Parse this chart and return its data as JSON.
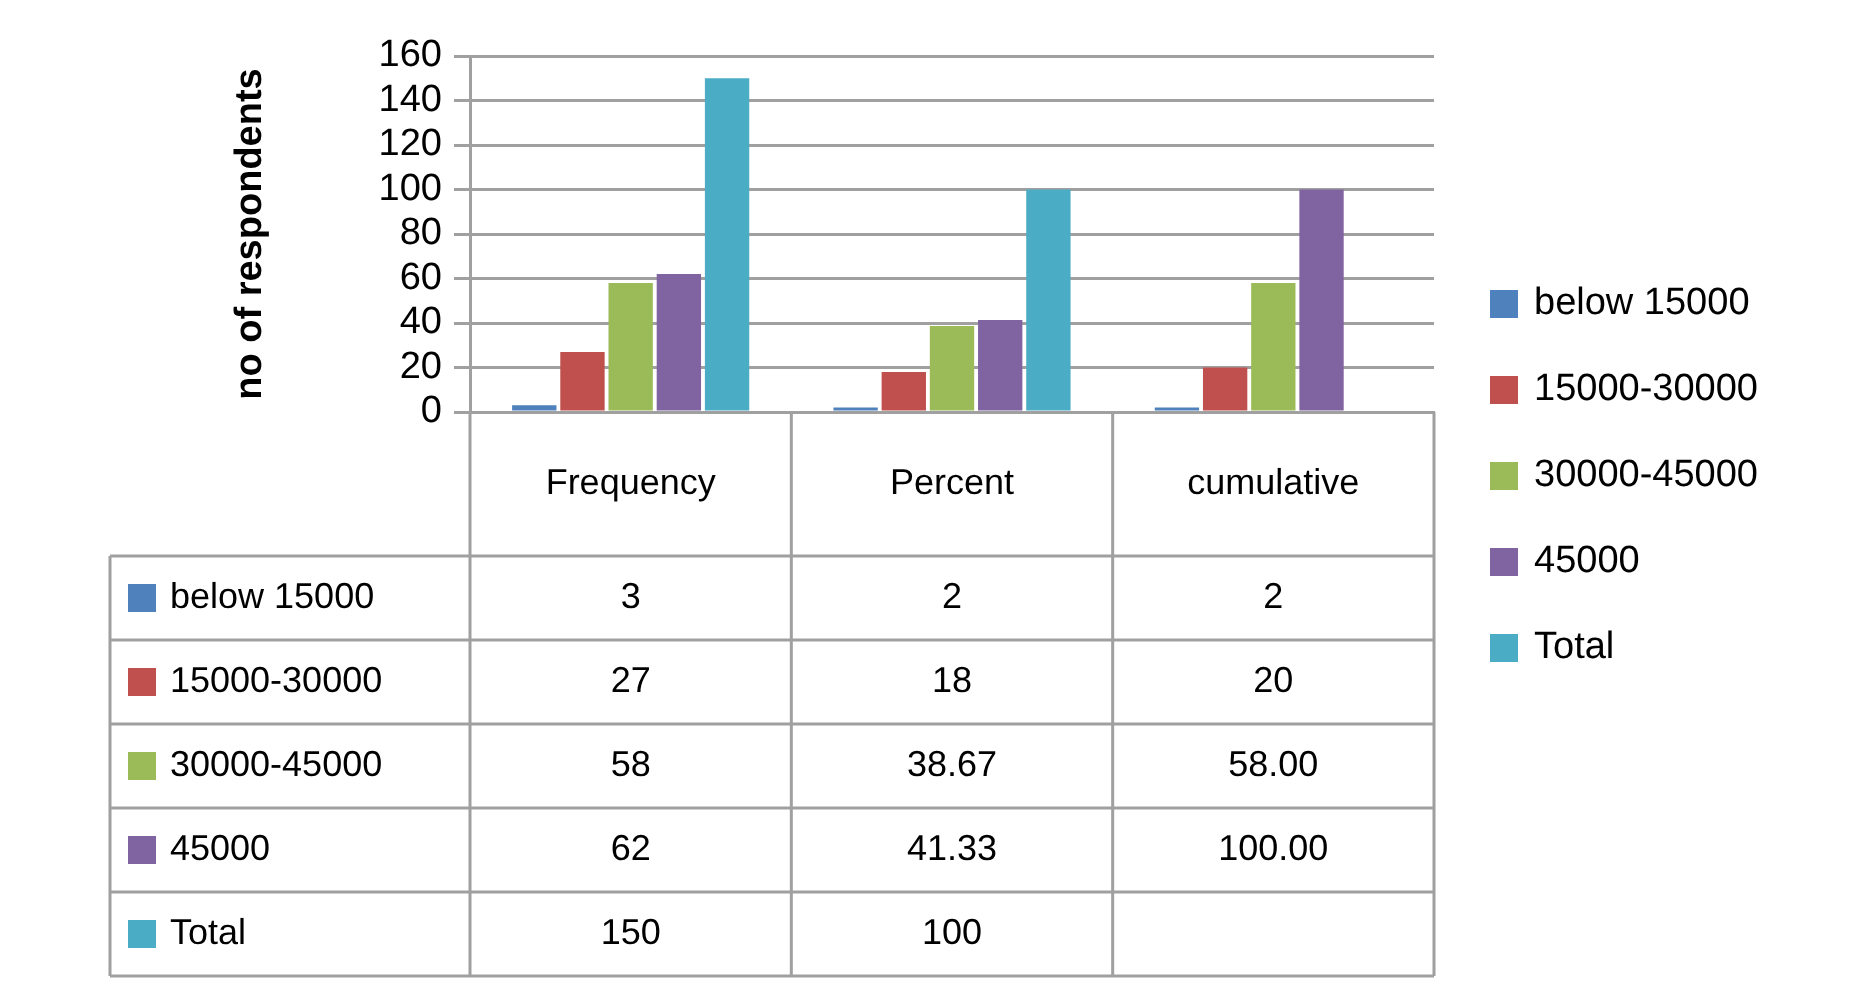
{
  "chart_data": {
    "type": "bar",
    "ylabel": "no of respondents",
    "categories": [
      "Frequency",
      "Percent",
      "cumulative"
    ],
    "series": [
      {
        "name": "below 15000",
        "color": "#4f81bd",
        "values": [
          3,
          2,
          2
        ],
        "value_labels": [
          "3",
          "2",
          "2"
        ]
      },
      {
        "name": "15000-30000",
        "color": "#c0504d",
        "values": [
          27,
          18,
          20
        ],
        "value_labels": [
          "27",
          "18",
          "20"
        ]
      },
      {
        "name": "30000-45000",
        "color": "#9bbb59",
        "values": [
          58,
          38.67,
          58
        ],
        "value_labels": [
          "58",
          "38.67",
          "58.00"
        ]
      },
      {
        "name": "45000",
        "color": "#8064a2",
        "values": [
          62,
          41.33,
          100
        ],
        "value_labels": [
          "62",
          "41.33",
          "100.00"
        ]
      },
      {
        "name": "Total",
        "color": "#4bacc6",
        "values": [
          150,
          100,
          null
        ],
        "value_labels": [
          "150",
          "100",
          null
        ]
      }
    ],
    "ylim": [
      0,
      160
    ],
    "yticks": [
      0,
      20,
      40,
      60,
      80,
      100,
      120,
      140,
      160
    ],
    "grid": "y",
    "legend": "right"
  }
}
